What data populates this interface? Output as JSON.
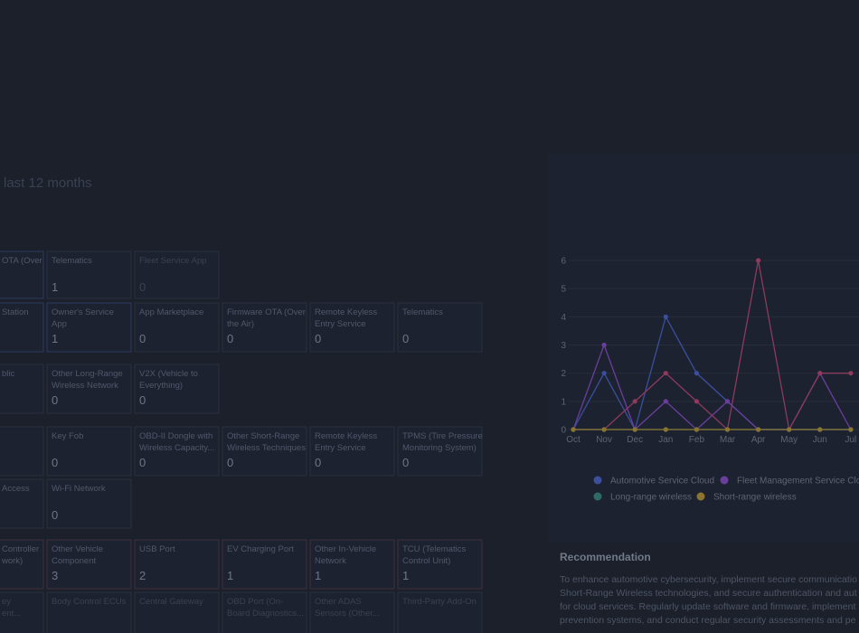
{
  "heading": "last 12 months",
  "tiles": {
    "rows": [
      {
        "cells": [
          {
            "label": [
              "OTA (Over"
            ]
          },
          {
            "label": [
              "Telematics"
            ],
            "count": 1
          },
          {
            "label": [
              "Fleet Service App"
            ],
            "count": 0
          }
        ]
      },
      {
        "cells": [
          {
            "label": [
              "Station"
            ]
          },
          {
            "label": [
              "Owner's Service",
              "App"
            ],
            "count": 1
          },
          {
            "label": [
              "App Marketplace"
            ],
            "count": 0
          },
          {
            "label": [
              "Firmware OTA (Over",
              "the Air)"
            ],
            "count": 0
          },
          {
            "label": [
              "Remote Keyless",
              "Entry Service"
            ],
            "count": 0
          },
          {
            "label": [
              "Telematics"
            ],
            "count": 0
          }
        ]
      },
      {
        "cells": [
          {
            "label": [
              "blic"
            ]
          },
          {
            "label": [
              "Other Long-Range",
              "Wireless Network"
            ],
            "count": 0
          },
          {
            "label": [
              "V2X (Vehicle to",
              "Everything)"
            ],
            "count": 0
          }
        ]
      },
      {
        "cells": [
          null,
          {
            "label": [
              "Key Fob"
            ],
            "count": 0
          },
          {
            "label": [
              "OBD-II Dongle with",
              "Wireless Capacity..."
            ],
            "count": 0
          },
          {
            "label": [
              "Other Short-Range",
              "Wireless Techniques"
            ],
            "count": 0
          },
          {
            "label": [
              "Remote Keyless",
              "Entry Service"
            ],
            "count": 0
          },
          {
            "label": [
              "TPMS (Tire Pressure",
              "Monitoring System)"
            ],
            "count": 0
          }
        ]
      },
      {
        "cells": [
          {
            "label": [
              "Access"
            ]
          },
          {
            "label": [
              "Wi-Fi Network"
            ],
            "count": 0
          }
        ]
      },
      {
        "cells": [
          {
            "label": [
              "Controller",
              "work)"
            ]
          },
          {
            "label": [
              "Other Vehicle",
              "Component"
            ],
            "count": 3
          },
          {
            "label": [
              "USB Port"
            ],
            "count": 2
          },
          {
            "label": [
              "EV Charging Port"
            ],
            "count": 1
          },
          {
            "label": [
              "Other In-Vehicle",
              "Network"
            ],
            "count": 1
          },
          {
            "label": [
              "TCU (Telematics",
              "Control Unit)"
            ],
            "count": 1
          }
        ]
      },
      {
        "cells": [
          {
            "label": [
              "ey",
              "ent..."
            ]
          },
          {
            "label": [
              "Body Control ECUs"
            ]
          },
          {
            "label": [
              "Central Gateway"
            ]
          },
          {
            "label": [
              "OBD Port (On-",
              "Board Diagnostics..."
            ]
          },
          {
            "label": [
              "Other ADAS",
              "Sensors (Other..."
            ]
          },
          {
            "label": [
              "Third-Party Add-On"
            ]
          }
        ]
      }
    ]
  },
  "chart_data": {
    "type": "line",
    "categories": [
      "Oct",
      "Nov",
      "Dec",
      "Jan",
      "Feb",
      "Mar",
      "Apr",
      "May",
      "Jun",
      "Jul"
    ],
    "ylim": [
      0,
      6
    ],
    "yticks": [
      0,
      1,
      2,
      3,
      4,
      5,
      6
    ],
    "grid": true,
    "series": [
      {
        "name": "Automotive Service Cloud",
        "color": "#3b4f9c",
        "values": [
          0,
          2,
          0,
          4,
          2,
          1,
          0,
          0,
          0,
          0
        ]
      },
      {
        "name": "Fleet Management Service Cloud",
        "color": "#6a3f9c",
        "values": [
          0,
          3,
          0,
          1,
          0,
          1,
          0,
          0,
          2,
          0
        ]
      },
      {
        "color": "#8c3a5e",
        "values": [
          0,
          0,
          1,
          2,
          1,
          0,
          6,
          0,
          2,
          2
        ]
      },
      {
        "name": "Long-range wireless",
        "color": "#2e6b66",
        "values": [
          0,
          0,
          0,
          0,
          0,
          0,
          0,
          0,
          0,
          0
        ]
      },
      {
        "name": "Short-range wireless",
        "color": "#8a7430",
        "values": [
          0,
          0,
          0,
          0,
          0,
          0,
          0,
          0,
          0,
          0
        ]
      }
    ]
  },
  "recommendation": {
    "title": "Recommendation",
    "lines": [
      "To enhance automotive cybersecurity, implement secure communicatio",
      "Short-Range Wireless technologies, and secure authentication and aut",
      "for cloud services. Regularly update software and firmware, implement",
      "prevention systems, and conduct regular security assessments and pe"
    ]
  }
}
